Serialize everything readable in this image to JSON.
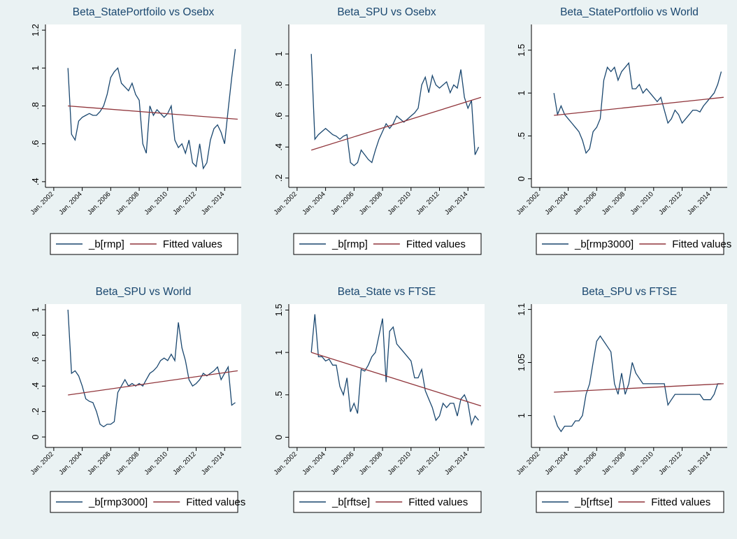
{
  "chart_data": [
    {
      "type": "line",
      "title": "Beta_StatePortfoilo vs Osebx",
      "x": [
        "2003-01",
        "2003-04",
        "2003-07",
        "2003-10",
        "2004-01",
        "2004-04",
        "2004-07",
        "2004-10",
        "2005-01",
        "2005-04",
        "2005-07",
        "2005-10",
        "2006-01",
        "2006-04",
        "2006-07",
        "2006-10",
        "2007-01",
        "2007-04",
        "2007-07",
        "2007-10",
        "2008-01",
        "2008-04",
        "2008-07",
        "2008-10",
        "2009-01",
        "2009-04",
        "2009-07",
        "2009-10",
        "2010-01",
        "2010-04",
        "2010-07",
        "2010-10",
        "2011-01",
        "2011-04",
        "2011-07",
        "2011-10",
        "2012-01",
        "2012-04",
        "2012-07",
        "2012-10",
        "2013-01",
        "2013-04",
        "2013-07",
        "2013-10",
        "2014-01",
        "2014-04",
        "2014-07",
        "2014-10"
      ],
      "series": [
        {
          "name": "_b[rmp]",
          "color": "#1a476f",
          "values": [
            1.0,
            0.65,
            0.62,
            0.72,
            0.74,
            0.75,
            0.76,
            0.75,
            0.75,
            0.77,
            0.8,
            0.86,
            0.95,
            0.98,
            1.0,
            0.92,
            0.9,
            0.88,
            0.92,
            0.86,
            0.83,
            0.6,
            0.55,
            0.8,
            0.75,
            0.78,
            0.76,
            0.74,
            0.76,
            0.8,
            0.62,
            0.58,
            0.6,
            0.55,
            0.62,
            0.5,
            0.48,
            0.6,
            0.47,
            0.5,
            0.62,
            0.68,
            0.7,
            0.66,
            0.6,
            0.78,
            0.95,
            1.1
          ]
        },
        {
          "name": "Fitted values",
          "color": "#90353b",
          "x": [
            "2003-01",
            "2014-12"
          ],
          "values": [
            0.8,
            0.73
          ]
        }
      ],
      "ylim": [
        0.37,
        1.23
      ],
      "yticks": [
        {
          "value": 0.4,
          "label": ".4"
        },
        {
          "value": 0.6,
          "label": ".6"
        },
        {
          "value": 0.8,
          "label": ".8"
        },
        1,
        {
          "value": 1.2,
          "label": "1.2"
        }
      ],
      "xlim": [
        "2001-06",
        "2015-03"
      ],
      "xticks": [
        {
          "value": "2002-01",
          "label": "Jan, 2002"
        },
        {
          "value": "2004-01",
          "label": "Jan, 2004"
        },
        {
          "value": "2006-01",
          "label": "Jan, 2006"
        },
        {
          "value": "2008-01",
          "label": "Jan, 2008"
        },
        {
          "value": "2010-01",
          "label": "Jan, 2010"
        },
        {
          "value": "2012-01",
          "label": "Jan, 2012"
        },
        {
          "value": "2014-01",
          "label": "Jan, 2014"
        }
      ]
    },
    {
      "type": "line",
      "title": "Beta_SPU vs Osebx",
      "x": [
        "2003-01",
        "2003-04",
        "2003-07",
        "2003-10",
        "2004-01",
        "2004-04",
        "2004-07",
        "2004-10",
        "2005-01",
        "2005-04",
        "2005-07",
        "2005-10",
        "2006-01",
        "2006-04",
        "2006-07",
        "2006-10",
        "2007-01",
        "2007-04",
        "2007-07",
        "2007-10",
        "2008-01",
        "2008-04",
        "2008-07",
        "2008-10",
        "2009-01",
        "2009-04",
        "2009-07",
        "2009-10",
        "2010-01",
        "2010-04",
        "2010-07",
        "2010-10",
        "2011-01",
        "2011-04",
        "2011-07",
        "2011-10",
        "2012-01",
        "2012-04",
        "2012-07",
        "2012-10",
        "2013-01",
        "2013-04",
        "2013-07",
        "2013-10",
        "2014-01",
        "2014-04",
        "2014-07",
        "2014-10"
      ],
      "series": [
        {
          "name": "_b[rmp]",
          "color": "#1a476f",
          "values": [
            1.0,
            0.45,
            0.48,
            0.5,
            0.52,
            0.5,
            0.48,
            0.47,
            0.45,
            0.47,
            0.48,
            0.3,
            0.28,
            0.3,
            0.38,
            0.35,
            0.32,
            0.3,
            0.38,
            0.45,
            0.5,
            0.55,
            0.52,
            0.55,
            0.6,
            0.58,
            0.56,
            0.58,
            0.6,
            0.62,
            0.65,
            0.8,
            0.85,
            0.75,
            0.86,
            0.8,
            0.78,
            0.8,
            0.82,
            0.75,
            0.8,
            0.78,
            0.9,
            0.72,
            0.65,
            0.7,
            0.35,
            0.4
          ]
        },
        {
          "name": "Fitted values",
          "color": "#90353b",
          "x": [
            "2003-01",
            "2014-12"
          ],
          "values": [
            0.38,
            0.72
          ]
        }
      ],
      "ylim": [
        0.14,
        1.19
      ],
      "yticks": [
        {
          "value": 0.2,
          "label": ".2"
        },
        {
          "value": 0.4,
          "label": ".4"
        },
        {
          "value": 0.6,
          "label": ".6"
        },
        {
          "value": 0.8,
          "label": ".8"
        },
        1
      ],
      "xlim": [
        "2001-06",
        "2015-03"
      ],
      "xticks": [
        {
          "value": "2002-01",
          "label": "Jan, 2002"
        },
        {
          "value": "2004-01",
          "label": "Jan, 2004"
        },
        {
          "value": "2006-01",
          "label": "Jan, 2006"
        },
        {
          "value": "2008-01",
          "label": "Jan, 2008"
        },
        {
          "value": "2010-01",
          "label": "Jan, 2010"
        },
        {
          "value": "2012-01",
          "label": "Jan, 2012"
        },
        {
          "value": "2014-01",
          "label": "Jan, 2014"
        }
      ]
    },
    {
      "type": "line",
      "title": "Beta_StatePortfolio vs World",
      "x": [
        "2003-01",
        "2003-04",
        "2003-07",
        "2003-10",
        "2004-01",
        "2004-04",
        "2004-07",
        "2004-10",
        "2005-01",
        "2005-04",
        "2005-07",
        "2005-10",
        "2006-01",
        "2006-04",
        "2006-07",
        "2006-10",
        "2007-01",
        "2007-04",
        "2007-07",
        "2007-10",
        "2008-01",
        "2008-04",
        "2008-07",
        "2008-10",
        "2009-01",
        "2009-04",
        "2009-07",
        "2009-10",
        "2010-01",
        "2010-04",
        "2010-07",
        "2010-10",
        "2011-01",
        "2011-04",
        "2011-07",
        "2011-10",
        "2012-01",
        "2012-04",
        "2012-07",
        "2012-10",
        "2013-01",
        "2013-04",
        "2013-07",
        "2013-10",
        "2014-01",
        "2014-04",
        "2014-07",
        "2014-10"
      ],
      "series": [
        {
          "name": "_b[rmp3000]",
          "color": "#1a476f",
          "values": [
            1.0,
            0.75,
            0.85,
            0.75,
            0.7,
            0.65,
            0.6,
            0.55,
            0.45,
            0.3,
            0.35,
            0.55,
            0.6,
            0.7,
            1.15,
            1.3,
            1.25,
            1.3,
            1.15,
            1.25,
            1.3,
            1.35,
            1.05,
            1.05,
            1.1,
            1.0,
            1.05,
            1.0,
            0.95,
            0.9,
            0.95,
            0.8,
            0.65,
            0.7,
            0.8,
            0.75,
            0.65,
            0.7,
            0.75,
            0.8,
            0.8,
            0.78,
            0.85,
            0.9,
            0.95,
            1.0,
            1.1,
            1.25
          ]
        },
        {
          "name": "Fitted values",
          "color": "#90353b",
          "x": [
            "2003-01",
            "2014-12"
          ],
          "values": [
            0.74,
            0.95
          ]
        }
      ],
      "ylim": [
        -0.1,
        1.8
      ],
      "yticks": [
        0,
        {
          "value": 0.5,
          "label": ".5"
        },
        1,
        1.5
      ],
      "xlim": [
        "2001-06",
        "2015-03"
      ],
      "xticks": [
        {
          "value": "2002-01",
          "label": "Jan, 2002"
        },
        {
          "value": "2004-01",
          "label": "Jan, 2004"
        },
        {
          "value": "2006-01",
          "label": "Jan, 2006"
        },
        {
          "value": "2008-01",
          "label": "Jan, 2008"
        },
        {
          "value": "2010-01",
          "label": "Jan, 2010"
        },
        {
          "value": "2012-01",
          "label": "Jan, 2012"
        },
        {
          "value": "2014-01",
          "label": "Jan, 2014"
        }
      ]
    },
    {
      "type": "line",
      "title": "Beta_SPU vs World",
      "x": [
        "2003-01",
        "2003-04",
        "2003-07",
        "2003-10",
        "2004-01",
        "2004-04",
        "2004-07",
        "2004-10",
        "2005-01",
        "2005-04",
        "2005-07",
        "2005-10",
        "2006-01",
        "2006-04",
        "2006-07",
        "2006-10",
        "2007-01",
        "2007-04",
        "2007-07",
        "2007-10",
        "2008-01",
        "2008-04",
        "2008-07",
        "2008-10",
        "2009-01",
        "2009-04",
        "2009-07",
        "2009-10",
        "2010-01",
        "2010-04",
        "2010-07",
        "2010-10",
        "2011-01",
        "2011-04",
        "2011-07",
        "2011-10",
        "2012-01",
        "2012-04",
        "2012-07",
        "2012-10",
        "2013-01",
        "2013-04",
        "2013-07",
        "2013-10",
        "2014-01",
        "2014-04",
        "2014-07",
        "2014-10"
      ],
      "series": [
        {
          "name": "_b[rmp3000]",
          "color": "#1a476f",
          "values": [
            1.0,
            0.5,
            0.52,
            0.48,
            0.4,
            0.3,
            0.28,
            0.27,
            0.2,
            0.1,
            0.08,
            0.1,
            0.1,
            0.12,
            0.35,
            0.4,
            0.45,
            0.4,
            0.42,
            0.4,
            0.42,
            0.4,
            0.45,
            0.5,
            0.52,
            0.55,
            0.6,
            0.62,
            0.6,
            0.65,
            0.6,
            0.9,
            0.7,
            0.6,
            0.45,
            0.4,
            0.42,
            0.45,
            0.5,
            0.48,
            0.5,
            0.52,
            0.55,
            0.45,
            0.5,
            0.55,
            0.25,
            0.27
          ]
        },
        {
          "name": "Fitted values",
          "color": "#90353b",
          "x": [
            "2003-01",
            "2014-12"
          ],
          "values": [
            0.33,
            0.52
          ]
        }
      ],
      "ylim": [
        -0.082,
        1.044
      ],
      "yticks": [
        0,
        {
          "value": 0.2,
          "label": ".2"
        },
        {
          "value": 0.4,
          "label": ".4"
        },
        {
          "value": 0.6,
          "label": ".6"
        },
        {
          "value": 0.8,
          "label": ".8"
        },
        1
      ],
      "xlim": [
        "2001-06",
        "2015-03"
      ],
      "xticks": [
        {
          "value": "2002-01",
          "label": "Jan, 2002"
        },
        {
          "value": "2004-01",
          "label": "Jan, 2004"
        },
        {
          "value": "2006-01",
          "label": "Jan, 2006"
        },
        {
          "value": "2008-01",
          "label": "Jan, 2008"
        },
        {
          "value": "2010-01",
          "label": "Jan, 2010"
        },
        {
          "value": "2012-01",
          "label": "Jan, 2012"
        },
        {
          "value": "2014-01",
          "label": "Jan, 2014"
        }
      ]
    },
    {
      "type": "line",
      "title": "Beta_State vs FTSE",
      "x": [
        "2003-01",
        "2003-04",
        "2003-07",
        "2003-10",
        "2004-01",
        "2004-04",
        "2004-07",
        "2004-10",
        "2005-01",
        "2005-04",
        "2005-07",
        "2005-10",
        "2006-01",
        "2006-04",
        "2006-07",
        "2006-10",
        "2007-01",
        "2007-04",
        "2007-07",
        "2007-10",
        "2008-01",
        "2008-04",
        "2008-07",
        "2008-10",
        "2009-01",
        "2009-04",
        "2009-07",
        "2009-10",
        "2010-01",
        "2010-04",
        "2010-07",
        "2010-10",
        "2011-01",
        "2011-04",
        "2011-07",
        "2011-10",
        "2012-01",
        "2012-04",
        "2012-07",
        "2012-10",
        "2013-01",
        "2013-04",
        "2013-07",
        "2013-10",
        "2014-01",
        "2014-04",
        "2014-07",
        "2014-10"
      ],
      "series": [
        {
          "name": "_b[rftse]",
          "color": "#1a476f",
          "values": [
            1.0,
            1.45,
            0.95,
            0.95,
            0.9,
            0.92,
            0.85,
            0.85,
            0.6,
            0.5,
            0.7,
            0.3,
            0.4,
            0.28,
            0.8,
            0.78,
            0.85,
            0.95,
            1.0,
            1.2,
            1.4,
            0.65,
            1.25,
            1.3,
            1.1,
            1.05,
            1.0,
            0.95,
            0.9,
            0.7,
            0.7,
            0.8,
            0.55,
            0.45,
            0.35,
            0.2,
            0.25,
            0.4,
            0.35,
            0.4,
            0.4,
            0.25,
            0.45,
            0.5,
            0.4,
            0.15,
            0.25,
            0.2
          ]
        },
        {
          "name": "Fitted values",
          "color": "#90353b",
          "x": [
            "2003-01",
            "2014-12"
          ],
          "values": [
            1.0,
            0.37
          ]
        }
      ],
      "ylim": [
        -0.12,
        1.57
      ],
      "yticks": [
        0,
        {
          "value": 0.5,
          "label": ".5"
        },
        1,
        1.5
      ],
      "xlim": [
        "2001-06",
        "2015-03"
      ],
      "xticks": [
        {
          "value": "2002-01",
          "label": "Jan, 2002"
        },
        {
          "value": "2004-01",
          "label": "Jan, 2004"
        },
        {
          "value": "2006-01",
          "label": "Jan, 2006"
        },
        {
          "value": "2008-01",
          "label": "Jan, 2008"
        },
        {
          "value": "2010-01",
          "label": "Jan, 2010"
        },
        {
          "value": "2012-01",
          "label": "Jan, 2012"
        },
        {
          "value": "2014-01",
          "label": "Jan, 2014"
        }
      ]
    },
    {
      "type": "line",
      "title": "Beta_SPU vs FTSE",
      "x": [
        "2003-01",
        "2003-04",
        "2003-07",
        "2003-10",
        "2004-01",
        "2004-04",
        "2004-07",
        "2004-10",
        "2005-01",
        "2005-04",
        "2005-07",
        "2005-10",
        "2006-01",
        "2006-04",
        "2006-07",
        "2006-10",
        "2007-01",
        "2007-04",
        "2007-07",
        "2007-10",
        "2008-01",
        "2008-04",
        "2008-07",
        "2008-10",
        "2009-01",
        "2009-04",
        "2009-07",
        "2009-10",
        "2010-01",
        "2010-04",
        "2010-07",
        "2010-10",
        "2011-01",
        "2011-04",
        "2011-07",
        "2011-10",
        "2012-01",
        "2012-04",
        "2012-07",
        "2012-10",
        "2013-01",
        "2013-04",
        "2013-07",
        "2013-10",
        "2014-01",
        "2014-04",
        "2014-07",
        "2014-10"
      ],
      "series": [
        {
          "name": "_b[rftse]",
          "color": "#1a476f",
          "values": [
            1.0,
            0.99,
            0.985,
            0.99,
            0.99,
            0.99,
            0.995,
            0.995,
            1.0,
            1.02,
            1.03,
            1.05,
            1.07,
            1.075,
            1.07,
            1.065,
            1.06,
            1.03,
            1.02,
            1.04,
            1.02,
            1.03,
            1.05,
            1.04,
            1.035,
            1.03,
            1.03,
            1.03,
            1.03,
            1.03,
            1.03,
            1.03,
            1.01,
            1.015,
            1.02,
            1.02,
            1.02,
            1.02,
            1.02,
            1.02,
            1.02,
            1.02,
            1.015,
            1.015,
            1.015,
            1.02,
            1.03,
            1.03
          ]
        },
        {
          "name": "Fitted values",
          "color": "#90353b",
          "x": [
            "2003-01",
            "2014-12"
          ],
          "values": [
            1.022,
            1.03
          ]
        }
      ],
      "ylim": [
        0.97,
        1.105
      ],
      "yticks": [
        1,
        1.05,
        1.1
      ],
      "xlim": [
        "2001-06",
        "2015-03"
      ],
      "xticks": [
        {
          "value": "2002-01",
          "label": "Jan, 2002"
        },
        {
          "value": "2004-01",
          "label": "Jan, 2004"
        },
        {
          "value": "2006-01",
          "label": "Jan, 2006"
        },
        {
          "value": "2008-01",
          "label": "Jan, 2008"
        },
        {
          "value": "2010-01",
          "label": "Jan, 2010"
        },
        {
          "value": "2012-01",
          "label": "Jan, 2012"
        },
        {
          "value": "2014-01",
          "label": "Jan, 2014"
        }
      ]
    }
  ]
}
